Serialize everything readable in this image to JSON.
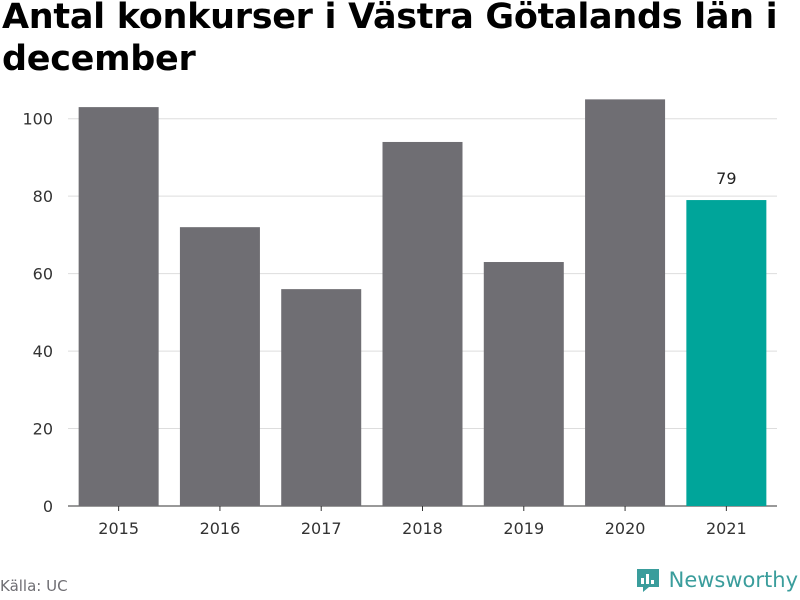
{
  "title": "Antal konkurser i Västra Götalands län i december",
  "source": "Källa: UC",
  "brand": {
    "name": "Newsworthy",
    "icon": "newsworthy-logo-icon"
  },
  "colors": {
    "bar": "#6f6e73",
    "highlight": "#00a59a",
    "grid": "#dddddd",
    "axis": "#333333",
    "brand": "#3a9d9c"
  },
  "chart_data": {
    "type": "bar",
    "title": "Antal konkurser i Västra Götalands län i december",
    "categories": [
      "2015",
      "2016",
      "2017",
      "2018",
      "2019",
      "2020",
      "2021"
    ],
    "values": [
      103,
      72,
      56,
      94,
      63,
      105,
      79
    ],
    "highlight_index": 6,
    "data_labels": [
      {
        "index": 6,
        "text": "79"
      }
    ],
    "yticks": [
      0,
      20,
      40,
      60,
      80,
      100
    ],
    "ylim": [
      0,
      110
    ],
    "xlabel": "",
    "ylabel": "",
    "grid": true,
    "legend": "none"
  }
}
